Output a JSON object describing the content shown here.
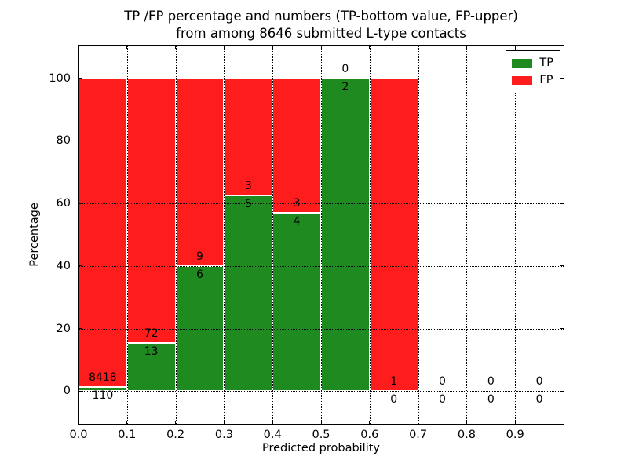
{
  "figure": {
    "title_line1": "TP /FP percentage and numbers (TP-bottom value, FP-upper)",
    "title_line2": "from among 8646 submitted L-type contacts"
  },
  "chart_data": {
    "type": "bar",
    "stacked": true,
    "title": "TP /FP percentage and numbers (TP-bottom value, FP-upper) from among 8646 submitted L-type contacts",
    "xlabel": "Predicted probability",
    "ylabel": "Percentage",
    "xlim": [
      0.0,
      1.0
    ],
    "ylim": [
      -10.5,
      110.5
    ],
    "x_ticks": [
      "0.0",
      "0.1",
      "0.2",
      "0.3",
      "0.4",
      "0.5",
      "0.6",
      "0.7",
      "0.8",
      "0.9"
    ],
    "y_ticks": [
      "0",
      "20",
      "40",
      "60",
      "80",
      "100"
    ],
    "grid": true,
    "grid_style": "dotted",
    "colors": {
      "tp": "#1f8a1f",
      "fp": "#ff1c1c",
      "bar_edge": "#ffffff"
    },
    "legend": {
      "position": "upper right",
      "entries": [
        {
          "label": "TP",
          "color": "#1f8a1f"
        },
        {
          "label": "FP",
          "color": "#ff1c1c"
        }
      ]
    },
    "bins": [
      {
        "range": [
          0.0,
          0.1
        ],
        "tp": 110,
        "fp": 8418
      },
      {
        "range": [
          0.1,
          0.2
        ],
        "tp": 13,
        "fp": 72
      },
      {
        "range": [
          0.2,
          0.3
        ],
        "tp": 6,
        "fp": 9
      },
      {
        "range": [
          0.3,
          0.4
        ],
        "tp": 5,
        "fp": 3
      },
      {
        "range": [
          0.4,
          0.5
        ],
        "tp": 4,
        "fp": 3
      },
      {
        "range": [
          0.5,
          0.6
        ],
        "tp": 2,
        "fp": 0
      },
      {
        "range": [
          0.6,
          0.7
        ],
        "tp": 0,
        "fp": 1
      },
      {
        "range": [
          0.7,
          0.8
        ],
        "tp": 0,
        "fp": 0
      },
      {
        "range": [
          0.8,
          0.9
        ],
        "tp": 0,
        "fp": 0
      },
      {
        "range": [
          0.9,
          1.0
        ],
        "tp": 0,
        "fp": 0
      }
    ]
  }
}
